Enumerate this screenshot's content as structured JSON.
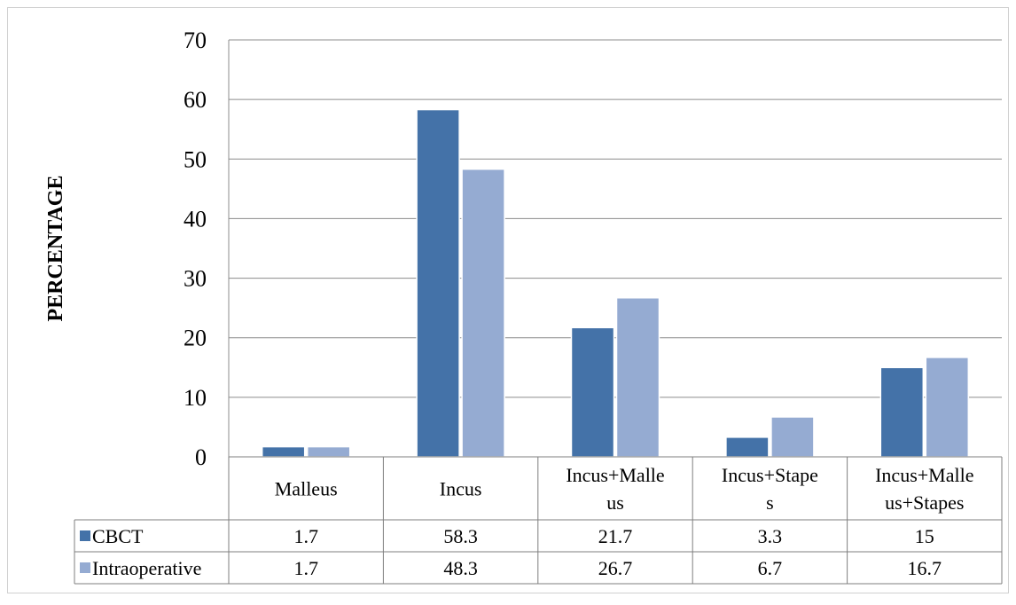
{
  "chart_data": {
    "type": "bar",
    "categories": [
      [
        "Malleus"
      ],
      [
        "Incus"
      ],
      [
        "Incus+Malle",
        "us"
      ],
      [
        "Incus+Stape",
        "s"
      ],
      [
        "Incus+Malle",
        "us+Stapes"
      ]
    ],
    "series": [
      {
        "name": "CBCT",
        "color": "#4472a8",
        "values": [
          1.7,
          58.3,
          21.7,
          3.3,
          15
        ],
        "labels": [
          "1.7",
          "58.3",
          "21.7",
          "3.3",
          "15"
        ]
      },
      {
        "name": "Intraoperative",
        "color": "#95abd2",
        "values": [
          1.7,
          48.3,
          26.7,
          6.7,
          16.7
        ],
        "labels": [
          "1.7",
          "48.3",
          "26.7",
          "6.7",
          "16.7"
        ]
      }
    ],
    "ylabel": "PERCENTAGE",
    "xlabel": "",
    "title": "",
    "ylim": [
      0,
      70
    ],
    "yticks": [
      "0",
      "10",
      "20",
      "30",
      "40",
      "50",
      "60",
      "70"
    ],
    "grid": true,
    "legend": "data-table"
  }
}
